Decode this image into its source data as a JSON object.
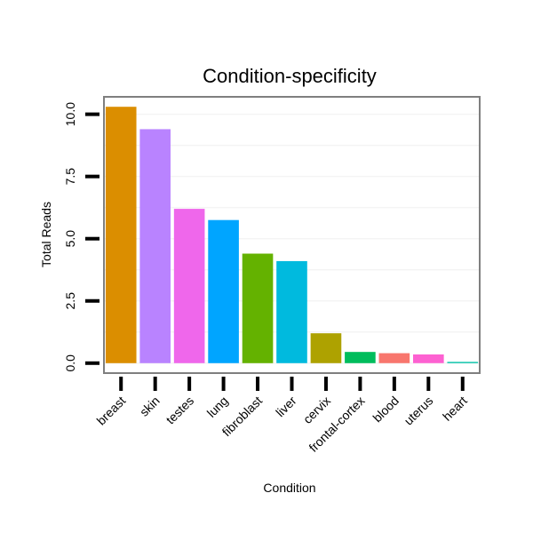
{
  "chart_data": {
    "type": "bar",
    "title": "Condition-specificity",
    "xlabel": "Condition",
    "ylabel": "Total Reads",
    "categories": [
      "breast",
      "skin",
      "testes",
      "lung",
      "fibroblast",
      "liver",
      "cervix",
      "frontal-cortex",
      "blood",
      "uterus",
      "heart"
    ],
    "values": [
      10.3,
      9.4,
      6.2,
      5.75,
      4.4,
      4.1,
      1.2,
      0.45,
      0.4,
      0.35,
      0.05
    ],
    "colors": [
      "#DB8E00",
      "#B983FF",
      "#EF67EB",
      "#00A5FF",
      "#64B200",
      "#00BADE",
      "#AEA200",
      "#00BD5C",
      "#F8766D",
      "#FD61D1",
      "#00C1A7"
    ],
    "yticks": [
      "0.0",
      "2.5",
      "5.0",
      "7.5",
      "10.0"
    ],
    "ytick_values": [
      0,
      2.5,
      5,
      7.5,
      10
    ],
    "ylim": [
      -0.4,
      10.7
    ],
    "grid": true,
    "legend": "none"
  }
}
